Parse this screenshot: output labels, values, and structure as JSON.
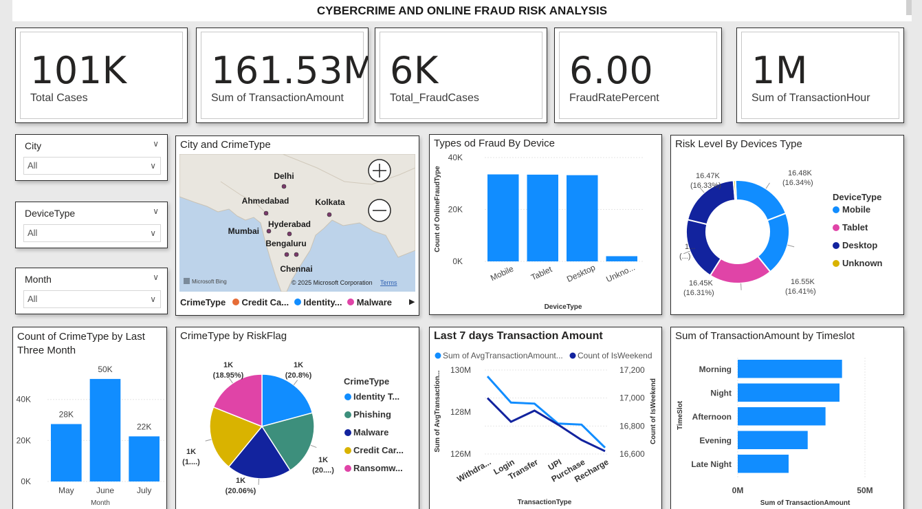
{
  "header": {
    "title": "CYBERCRIME AND ONLINE FRAUD RISK ANALYSIS"
  },
  "kpis": [
    {
      "value": "101K",
      "label": "Total Cases"
    },
    {
      "value": "161.53M",
      "label": "Sum of TransactionAmount"
    },
    {
      "value": "6K",
      "label": "Total_FraudCases"
    },
    {
      "value": "6.00",
      "label": "FraudRatePercent"
    },
    {
      "value": "1M",
      "label": "Sum of TransactionHour"
    }
  ],
  "slicers": [
    {
      "title": "City",
      "value": "All"
    },
    {
      "title": "DeviceType",
      "value": "All"
    },
    {
      "title": "Month",
      "value": "All"
    }
  ],
  "map": {
    "title": "City and CrimeType",
    "cities": [
      "Delhi",
      "Ahmedabad",
      "Kolkata",
      "Hyderabad",
      "Mumbai",
      "Bengaluru",
      "Chennai"
    ],
    "attribution": "Microsoft Bing",
    "copyright": "© 2025 Microsoft Corporation",
    "terms": "Terms",
    "legend_title": "CrimeType",
    "legend": [
      {
        "label": "Credit Ca...",
        "color": "#e66c37"
      },
      {
        "label": "Identity...",
        "color": "#118dff"
      },
      {
        "label": "Malware",
        "color": "#e044a7"
      }
    ]
  },
  "chart_data": [
    {
      "id": "fraud_by_device",
      "type": "bar",
      "title": "Types od Fraud By Device",
      "categories": [
        "Mobile",
        "Tablet",
        "Desktop",
        "Unkno..."
      ],
      "values": [
        33500,
        33400,
        33200,
        2000
      ],
      "xlabel": "DeviceType",
      "ylabel": "Count of OnlineFraudType",
      "yticks": [
        "0K",
        "20K",
        "40K"
      ],
      "ylim": [
        0,
        40000
      ]
    },
    {
      "id": "risk_by_device",
      "type": "pie",
      "donut": true,
      "title": "Risk Level By Devices Type",
      "legend_title": "DeviceType",
      "slices": [
        {
          "name": "Mobile",
          "value": 16.34,
          "color": "#118dff"
        },
        {
          "name": "Tablet",
          "value": 16.41,
          "color": "#e044a7"
        },
        {
          "name": "Desktop",
          "value": 16.31,
          "color": "#12239e"
        },
        {
          "name": "Unknown",
          "value": 0.5,
          "color": "#d9b300"
        }
      ],
      "segments": [
        {
          "label": "16.48K",
          "pct": "(16.34%)",
          "value": 16.34,
          "color": "#118dff"
        },
        {
          "label": "16.55K",
          "pct": "(16.41%)",
          "value": 16.41,
          "color": "#118dff"
        },
        {
          "label": "16.45K",
          "pct": "(16.31%)",
          "value": 16.31,
          "color": "#e044a7"
        },
        {
          "label": "1...",
          "pct": "(...)",
          "value": 16.3,
          "color": "#12239e"
        },
        {
          "label": "16.47K",
          "pct": "(16.33%)",
          "value": 16.33,
          "color": "#12239e"
        },
        {
          "label": "",
          "pct": "",
          "value": 0.5,
          "color": "#d9b300"
        }
      ]
    },
    {
      "id": "crime_last_three_months",
      "type": "bar",
      "title": "Count of CrimeType by Last Three Month",
      "categories": [
        "May",
        "June",
        "July"
      ],
      "values": [
        28000,
        50000,
        22000
      ],
      "data_labels": [
        "28K",
        "50K",
        "22K"
      ],
      "xlabel": "Month",
      "yticks": [
        "0K",
        "20K",
        "40K"
      ],
      "ylim": [
        0,
        55000
      ]
    },
    {
      "id": "crime_by_riskflag",
      "type": "pie",
      "title": "CrimeType by RiskFlag",
      "legend_title": "CrimeType",
      "legend": [
        {
          "label": "Identity T...",
          "color": "#118dff"
        },
        {
          "label": "Phishing",
          "color": "#3d8f7c"
        },
        {
          "label": "Malware",
          "color": "#12239e"
        },
        {
          "label": "Credit Car...",
          "color": "#d9b300"
        },
        {
          "label": "Ransomw...",
          "color": "#e044a7"
        }
      ],
      "slices": [
        {
          "name": "Identity Theft",
          "value": 20.8,
          "label": "1K",
          "pct": "(20.8%)",
          "color": "#118dff"
        },
        {
          "name": "Phishing",
          "value": 20.1,
          "label": "1K",
          "pct": "(20....)",
          "color": "#3d8f7c"
        },
        {
          "name": "Malware",
          "value": 20.06,
          "label": "1K",
          "pct": "(20.06%)",
          "color": "#12239e"
        },
        {
          "name": "Credit Card",
          "value": 20.09,
          "label": "1K",
          "pct": "(1....)",
          "color": "#d9b300"
        },
        {
          "name": "Ransomware",
          "value": 18.95,
          "label": "1K",
          "pct": "(18.95%)",
          "color": "#e044a7"
        }
      ]
    },
    {
      "id": "last7_transaction",
      "type": "line",
      "title": "Last 7 days Transaction Amount",
      "categories": [
        "Withdra...",
        "Login",
        "Transfer",
        "UPI",
        "Purchase",
        "Recharge"
      ],
      "xlabel": "TransactionType",
      "series": [
        {
          "name": "Sum of AvgTransactionAmount...",
          "axis": "left",
          "color": "#118dff",
          "values": [
            129700000,
            128450000,
            128400000,
            127450000,
            127400000,
            126300000
          ]
        },
        {
          "name": "Count of IsWeekend",
          "axis": "right",
          "color": "#12239e",
          "values": [
            17000,
            16830,
            16910,
            16810,
            16700,
            16620
          ]
        }
      ],
      "left_axis": {
        "label": "Sum of AvgTransaction...",
        "ylim": [
          126000000,
          130000000
        ],
        "ticks": [
          126000000,
          128000000,
          130000000
        ],
        "tick_labels": [
          "126M",
          "128M",
          "130M"
        ]
      },
      "right_axis": {
        "label": "Count of IsWeekend",
        "ylim": [
          16600,
          17200
        ],
        "ticks": [
          16600,
          16800,
          17000,
          17200
        ],
        "tick_labels": [
          "16,600",
          "16,800",
          "17,000",
          "17,200"
        ]
      }
    },
    {
      "id": "amount_by_timeslot",
      "type": "bar",
      "orientation": "horizontal",
      "title": "Sum of TransactionAmount by Timeslot",
      "categories": [
        "Morning",
        "Night",
        "Afternoon",
        "Evening",
        "Late Night"
      ],
      "values": [
        41000000,
        40000000,
        34500000,
        27500000,
        20000000
      ],
      "xlabel": "Sum of TransactionAmount",
      "ylabel": "TimeSlot",
      "xticks": [
        "0M",
        "50M"
      ],
      "xlim": [
        0,
        50000000
      ]
    }
  ]
}
